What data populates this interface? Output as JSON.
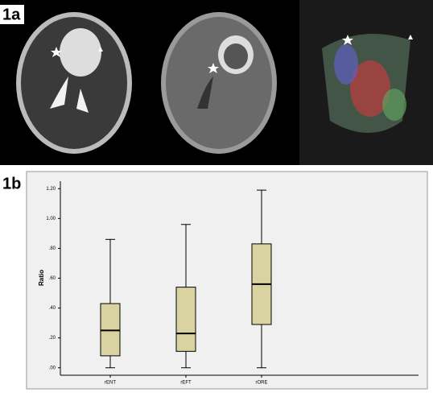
{
  "panel_a": {
    "label": "1a"
  },
  "chart_data": {
    "type": "box",
    "label": "1b",
    "ylabel": "Ratio",
    "categories": [
      "rENT",
      "rEFT",
      "rORE"
    ],
    "boxes": [
      {
        "min": 0,
        "q1": 0.08,
        "median": 0.25,
        "q3": 0.43,
        "max": 0.86
      },
      {
        "min": 0,
        "q1": 0.11,
        "median": 0.23,
        "q3": 0.54,
        "max": 0.96
      },
      {
        "min": 0,
        "q1": 0.29,
        "median": 0.56,
        "q3": 0.83,
        "max": 1.19
      }
    ],
    "color": "#d8d3a0",
    "ylim": [
      -0.05,
      1.25
    ],
    "yticks": [
      {
        "value": 0,
        "label": ".00"
      },
      {
        "value": 0.2,
        "label": ".20"
      },
      {
        "value": 0.4,
        "label": ".40"
      },
      {
        "value": 0.6,
        "label": ".60"
      },
      {
        "value": 0.8,
        "label": ".80"
      },
      {
        "value": 1.0,
        "label": "1.00"
      },
      {
        "value": 1.2,
        "label": "1.20"
      }
    ],
    "grid": false
  }
}
